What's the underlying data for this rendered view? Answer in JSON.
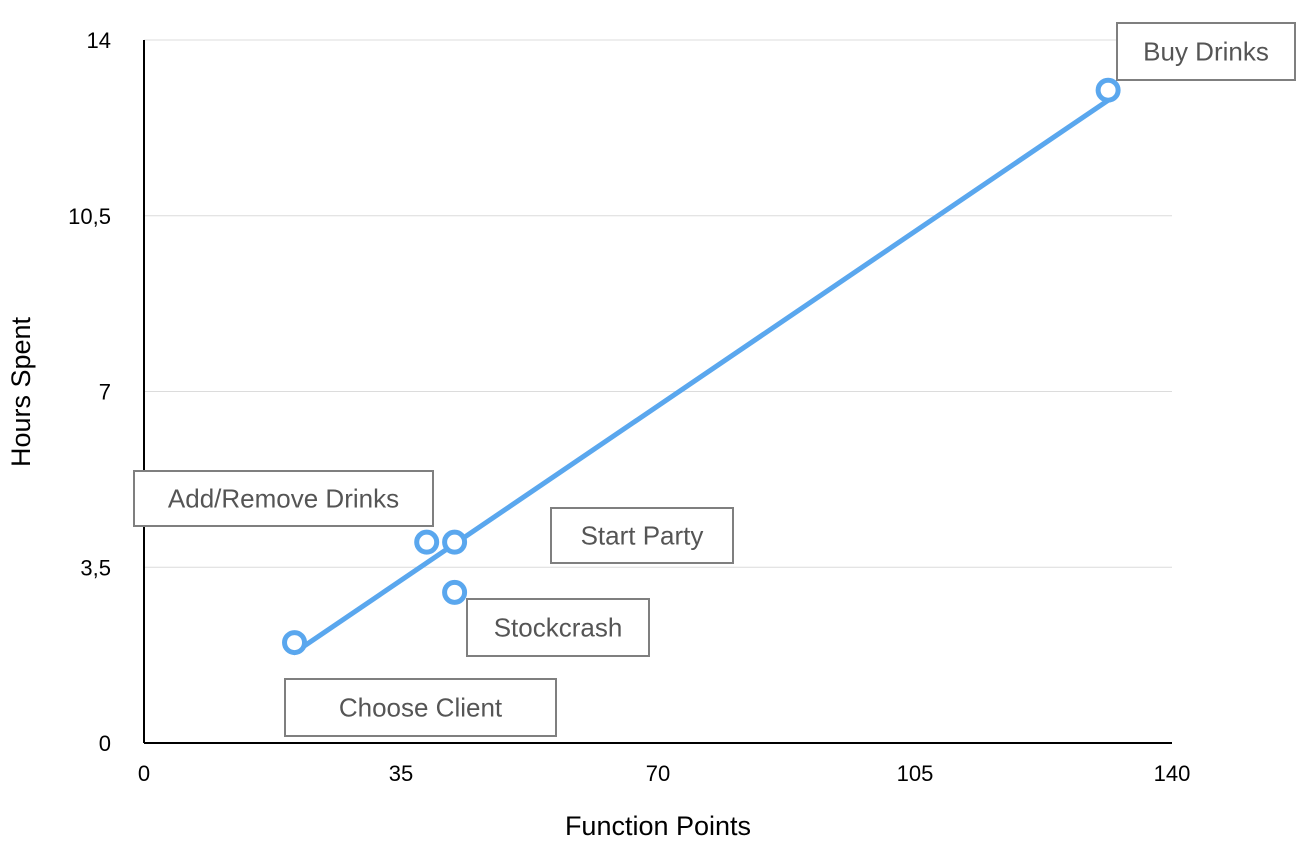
{
  "chart_data": {
    "type": "scatter",
    "title": "",
    "xlabel": "Function Points",
    "ylabel": "Hours Spent",
    "xlim": [
      0,
      140
    ],
    "ylim": [
      0,
      14
    ],
    "x_ticks": [
      "0",
      "35",
      "70",
      "105",
      "140"
    ],
    "y_ticks": [
      "0",
      "3,5",
      "7",
      "10,5",
      "14"
    ],
    "grid": "horizontal",
    "points": [
      {
        "label": "Choose Client",
        "x": 20.5,
        "y": 2.0
      },
      {
        "label": "Add/Remove Drinks",
        "x": 38.5,
        "y": 4.0
      },
      {
        "label": "Start Party",
        "x": 42.3,
        "y": 4.0
      },
      {
        "label": "Stockcrash",
        "x": 42.3,
        "y": 3.0
      },
      {
        "label": "Buy Drinks",
        "x": 131.3,
        "y": 13.0
      }
    ],
    "trendline": {
      "x": [
        20.5,
        131.3
      ],
      "y": [
        1.8,
        12.8
      ]
    },
    "colors": {
      "series": "#5aa7ee",
      "grid": "#dcdcdc",
      "axis": "#000000",
      "label_border": "#7f7f7f"
    }
  }
}
